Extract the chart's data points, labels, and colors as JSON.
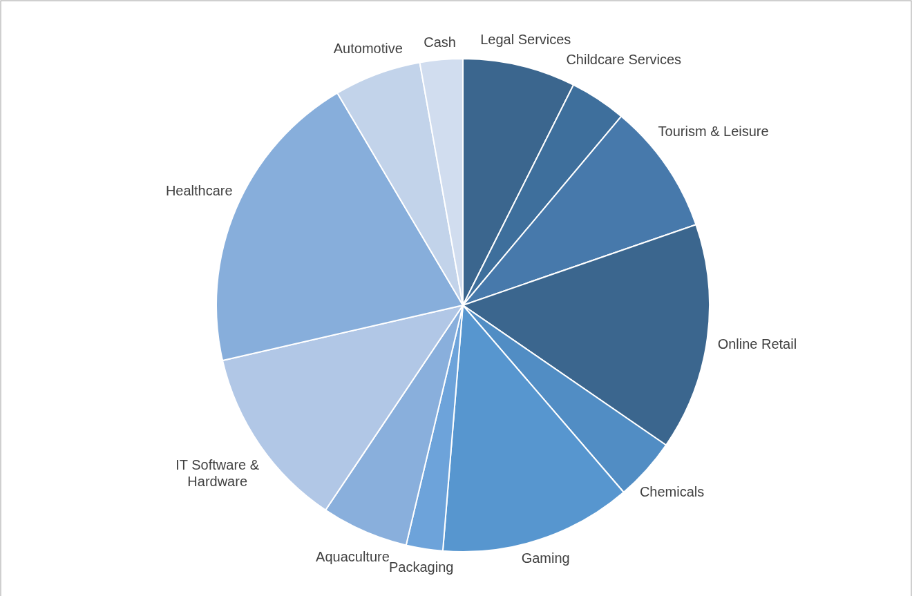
{
  "chart_data": {
    "type": "pie",
    "categories": [
      "Legal Services",
      "Childcare Services",
      "Tourism & Leisure",
      "Online Retail",
      "Chemicals",
      "Gaming",
      "Packaging",
      "Aquaculture",
      "IT Software & Hardware",
      "Healthcare",
      "Automotive",
      "Cash"
    ],
    "values": [
      7.4,
      3.7,
      8.6,
      14.9,
      4.1,
      12.6,
      2.4,
      5.7,
      12.0,
      20.1,
      5.7,
      2.8
    ],
    "colors": [
      "#3b668e",
      "#3e6f9c",
      "#4779ab",
      "#3b668e",
      "#518dc4",
      "#5796cf",
      "#6da3da",
      "#89afdc",
      "#b1c7e6",
      "#87aedb",
      "#c2d3ea",
      "#d1ddef"
    ]
  }
}
